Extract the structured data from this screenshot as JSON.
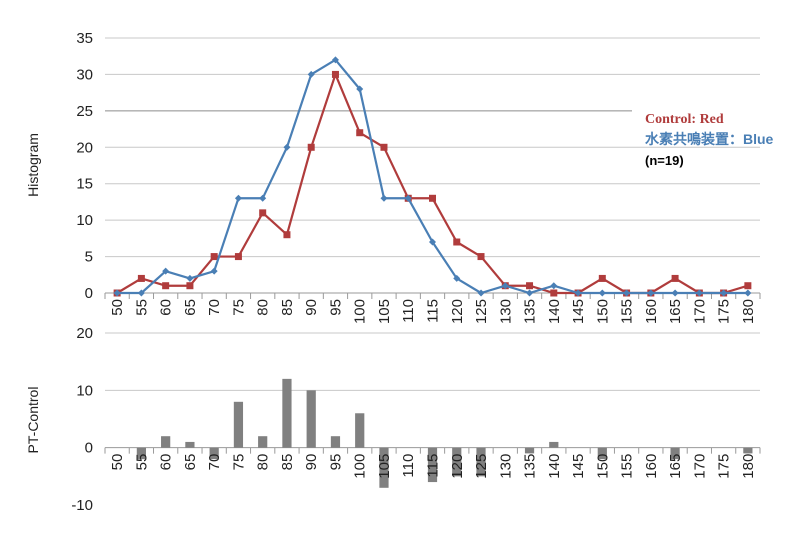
{
  "chart_data": [
    {
      "type": "line",
      "ylabel": "Histogram",
      "xlabel": "",
      "ylim": [
        0,
        35
      ],
      "yticks": [
        0,
        5,
        10,
        15,
        20,
        25,
        30,
        35
      ],
      "categories": [
        "50",
        "55",
        "60",
        "65",
        "70",
        "75",
        "80",
        "85",
        "90",
        "95",
        "100",
        "105",
        "110",
        "115",
        "120",
        "125",
        "130",
        "135",
        "140",
        "145",
        "150",
        "155",
        "160",
        "165",
        "170",
        "175",
        "180"
      ],
      "series": [
        {
          "name": "Control: Red",
          "color": "#b03c3c",
          "marker": "square",
          "values": [
            0,
            2,
            1,
            1,
            5,
            5,
            11,
            8,
            20,
            30,
            22,
            20,
            13,
            13,
            7,
            5,
            1,
            1,
            0,
            0,
            2,
            0,
            0,
            2,
            0,
            0,
            1
          ]
        },
        {
          "name": "水素共鳴装置：Blue",
          "color": "#4a7fb5",
          "marker": "diamond",
          "values": [
            0,
            0,
            3,
            2,
            3,
            13,
            13,
            20,
            30,
            32,
            28,
            13,
            13,
            7,
            2,
            0,
            1,
            0,
            1,
            0,
            0,
            0,
            0,
            0,
            0,
            0,
            0
          ]
        }
      ],
      "legend": {
        "line1": "Control: Red",
        "line2": "水素共鳴装置：Blue",
        "line3": "(n=19)",
        "placement": "right"
      }
    },
    {
      "type": "bar",
      "ylabel": "PT-Control",
      "xlabel": "",
      "ylim": [
        -10,
        20
      ],
      "yticks": [
        -10,
        0,
        10,
        20
      ],
      "categories": [
        "50",
        "55",
        "60",
        "65",
        "70",
        "75",
        "80",
        "85",
        "90",
        "95",
        "100",
        "105",
        "110",
        "115",
        "120",
        "125",
        "130",
        "135",
        "140",
        "145",
        "150",
        "155",
        "160",
        "165",
        "170",
        "175",
        "180"
      ],
      "series": [
        {
          "name": "PT-Control",
          "color": "#808080",
          "values": [
            0,
            -2,
            2,
            1,
            -2,
            8,
            2,
            12,
            10,
            2,
            6,
            -7,
            0,
            -6,
            -5,
            -5,
            0,
            -1,
            1,
            0,
            -2,
            0,
            0,
            -2,
            0,
            0,
            -1
          ]
        }
      ]
    }
  ],
  "colors": {
    "red": "#b03c3c",
    "blue": "#4a7fb5",
    "bar": "#808080",
    "grid": "#c8c8c8"
  }
}
